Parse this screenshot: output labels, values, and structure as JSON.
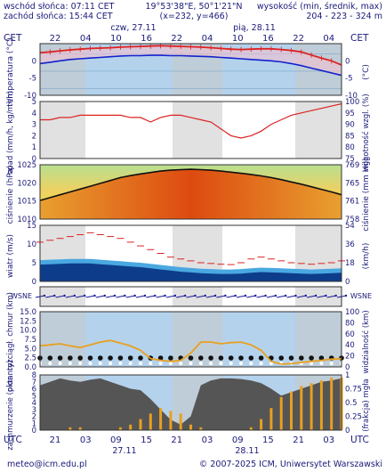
{
  "header": {
    "sunrise": "wschód słońca: 07:11 CET",
    "sunset": "zachód słońca: 15:44 CET",
    "coords": "19°53'38\"E, 50°1'21\"N",
    "grid": "(x=232, y=466)",
    "elev_label": "wysokość (min, średnik, max)",
    "elev_values": "204 - 223 - 324 m"
  },
  "axes": {
    "cet": "CET",
    "utc": "UTC",
    "top_hours": [
      "22",
      "04",
      "10",
      "16",
      "22",
      "04",
      "10",
      "16",
      "22",
      "04"
    ],
    "bottom_hours": [
      "21",
      "03",
      "09",
      "15",
      "21",
      "03",
      "09",
      "15",
      "21",
      "03"
    ],
    "day_top_1": "czw, 27.11",
    "day_top_2": "pią, 28.11",
    "day_bottom_1": "27.11",
    "day_bottom_2": "28.11"
  },
  "footer": {
    "email": "meteo@icm.edu.pl",
    "copyright": "© 2007-2025 ICM, Uniwersytet Warszawski"
  },
  "colors": {
    "panel_bg": "#b4d2ec",
    "shade": "#c8c8c8",
    "temp_red": "#dd2222",
    "temp_blue": "#1122cc",
    "fog_orange": "#e8a020",
    "dark_blue": "#0d3d8a"
  },
  "chart_data": [
    {
      "type": "line",
      "name": "temperatura",
      "ylabel_left": "temperatura (°C)",
      "ylabel_right": "(°C)",
      "ylim": [
        -12,
        3
      ],
      "ticks_left": [
        "0",
        "-5",
        "-10"
      ],
      "ticks_right": [
        "0",
        "-5",
        "-10"
      ],
      "series": [
        {
          "values": [
            0.4,
            0.6,
            0.9,
            1.2,
            1.4,
            1.6,
            1.7,
            1.8,
            2.0,
            2.1,
            2.2,
            2.3,
            2.4,
            2.3,
            2.2,
            2.1,
            2.0,
            1.8,
            1.6,
            1.4,
            1.3,
            1.4,
            1.5,
            1.5,
            1.3,
            1.0,
            0.6,
            -0.3,
            -1.2,
            -2.0,
            -3.2
          ]
        },
        {
          "values": [
            -2.8,
            -2.4,
            -2.0,
            -1.6,
            -1.4,
            -1.2,
            -1.0,
            -0.8,
            -0.6,
            -0.5,
            -0.5,
            -0.4,
            -0.4,
            -0.5,
            -0.5,
            -0.6,
            -0.7,
            -0.8,
            -1.0,
            -1.2,
            -1.4,
            -1.6,
            -1.8,
            -2.0,
            -2.3,
            -2.8,
            -3.4,
            -4.1,
            -4.8,
            -5.5,
            -6.2
          ]
        }
      ]
    },
    {
      "type": "line",
      "name": "opad / wilgotność",
      "ylabel_left": "opad (mm/h, kg/m²/h)",
      "ylabel_right": "wilgotność wzgl. (%)",
      "ylim": [
        0,
        5
      ],
      "ticks_left": [
        "5",
        "4",
        "3",
        "2",
        "1",
        "0"
      ],
      "ticks_right": [
        "100",
        "95",
        "90",
        "85",
        "80",
        "75"
      ],
      "humidity_ylim": [
        75,
        100
      ],
      "humidity": [
        92,
        92,
        93,
        93,
        94,
        94,
        94,
        94,
        94,
        93,
        93,
        91,
        93,
        94,
        94,
        93,
        92,
        91,
        88,
        85,
        84,
        85,
        87,
        90,
        92,
        94,
        95,
        96,
        97,
        98,
        99
      ]
    },
    {
      "type": "area",
      "name": "ciśnienie",
      "ylabel_left": "ciśnienie (hPa)",
      "ylabel_right": "ciśnienie (mm Hg)",
      "ylim": [
        1007,
        1026
      ],
      "ticks_left": [
        "1025",
        "1020",
        "1015",
        "1010"
      ],
      "ticks_right": [
        "769",
        "765",
        "761",
        "758"
      ],
      "values": [
        1013.5,
        1014.5,
        1015.5,
        1016.5,
        1017.5,
        1018.5,
        1019.5,
        1020.5,
        1021.5,
        1022.2,
        1022.8,
        1023.3,
        1023.8,
        1024.1,
        1024.3,
        1024.4,
        1024.3,
        1024.1,
        1023.8,
        1023.4,
        1023.0,
        1022.6,
        1022.1,
        1021.5,
        1020.8,
        1020.0,
        1019.2,
        1018.3,
        1017.4,
        1016.5,
        1015.5
      ]
    },
    {
      "type": "area",
      "name": "wiatr",
      "ylabel_left": "wiatr (m/s)",
      "ylabel_right": "(km/h)",
      "ylim": [
        0,
        15
      ],
      "ticks_left": [
        "15",
        "10",
        "5",
        "0"
      ],
      "ticks_right": [
        "54",
        "36",
        "18",
        "0"
      ],
      "gusts": [
        10.5,
        11.0,
        11.5,
        12.0,
        12.5,
        13.0,
        12.5,
        12.0,
        11.5,
        10.5,
        9.5,
        8.5,
        7.5,
        6.5,
        6.0,
        5.5,
        5.0,
        4.8,
        4.6,
        4.5,
        5.0,
        6.0,
        6.5,
        6.0,
        5.5,
        5.0,
        4.8,
        4.6,
        4.8,
        5.0,
        5.5
      ],
      "wind": [
        4.5,
        4.6,
        4.7,
        4.8,
        4.8,
        4.8,
        4.6,
        4.4,
        4.2,
        4.0,
        3.8,
        3.5,
        3.2,
        2.9,
        2.6,
        2.4,
        2.2,
        2.1,
        2.0,
        2.0,
        2.1,
        2.3,
        2.5,
        2.4,
        2.3,
        2.2,
        2.1,
        2.0,
        2.1,
        2.2,
        2.3
      ]
    },
    {
      "type": "scatter",
      "name": "kierunek wiatru",
      "compass": [
        "W",
        "S",
        "N",
        "E"
      ]
    },
    {
      "type": "scatter",
      "name": "chmury / widzialność",
      "ylabel_left": "pion. rozciągł. chmur (km)",
      "ylabel_right": "widzialność (km)",
      "ylim": [
        0,
        15
      ],
      "ticks_left": [
        "15.0",
        "12.5",
        "10.0",
        "7.5",
        "5.0",
        "2.5",
        "0.0"
      ],
      "ticks_right": [
        "100",
        "80",
        "60",
        "40",
        "20",
        "0"
      ],
      "visibility": [
        38,
        40,
        42,
        38,
        35,
        40,
        45,
        48,
        43,
        38,
        30,
        15,
        12,
        10,
        12,
        25,
        45,
        45,
        42,
        44,
        45,
        40,
        30,
        10,
        5,
        6,
        8,
        10,
        12,
        14,
        15
      ]
    },
    {
      "type": "area",
      "name": "zachmurzenie / mgła",
      "ylabel_left": "zachmurzenie (oktanty)",
      "ylabel_right": "(frakcja) mgła",
      "ylim": [
        0,
        8
      ],
      "ticks_left": [
        "8",
        "7",
        "6",
        "5",
        "4",
        "3",
        "2",
        "1",
        "0"
      ],
      "ticks_right": [
        "1",
        "0.75",
        "0.5",
        "0.25",
        "0"
      ],
      "cloud_total": [
        6.5,
        7.0,
        7.5,
        7.2,
        7.0,
        7.3,
        7.5,
        7.0,
        6.5,
        6.0,
        5.8,
        4.5,
        3.0,
        1.5,
        0.8,
        2.0,
        6.5,
        7.2,
        7.5,
        7.5,
        7.4,
        7.2,
        6.8,
        6.0,
        5.0,
        5.5,
        6.0,
        6.5,
        7.0,
        7.2,
        7.5
      ],
      "fog": [
        0,
        0,
        0,
        0.05,
        0.05,
        0,
        0,
        0,
        0.05,
        0.1,
        0.2,
        0.3,
        0.4,
        0.35,
        0.3,
        0.1,
        0.05,
        0,
        0,
        0,
        0,
        0.05,
        0.2,
        0.4,
        0.6,
        0.7,
        0.8,
        0.85,
        0.9,
        0.95,
        0.95
      ]
    }
  ]
}
